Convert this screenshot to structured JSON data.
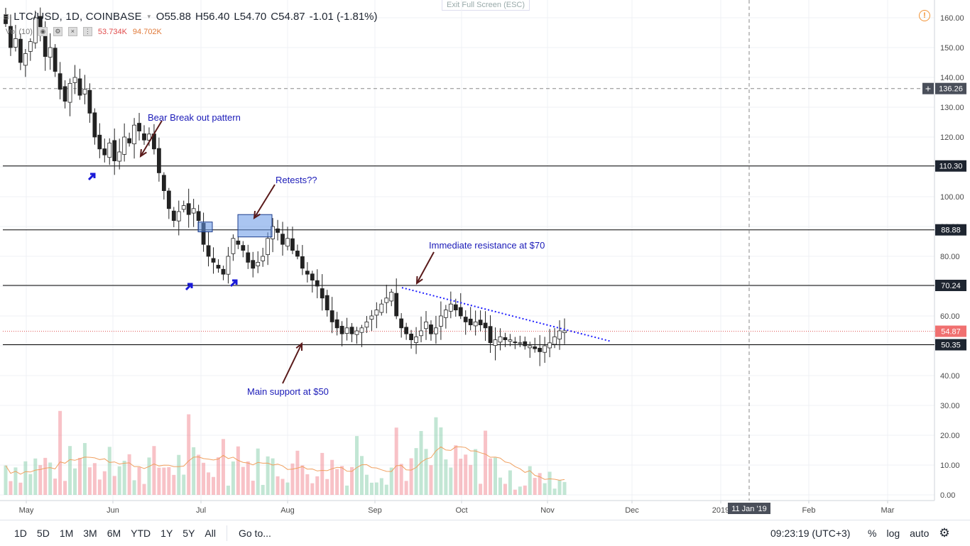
{
  "header": {
    "symbol": "LTC/USD, 1D, COINBASE",
    "open": "O55.88",
    "high": "H56.40",
    "low": "L54.70",
    "close": "C54.87",
    "change": "-1.01 (-1.81%)"
  },
  "volume_row": {
    "label": "Vol (10)",
    "value1": "53.734K",
    "value2": "94.702K"
  },
  "exit_fullscreen": "Exit Full Screen (ESC)",
  "bottom_bar": {
    "timeframes": [
      "1D",
      "5D",
      "1M",
      "3M",
      "6M",
      "YTD",
      "1Y",
      "5Y",
      "All"
    ],
    "goto": "Go to...",
    "clock": "09:23:19 (UTC+3)",
    "percent": "%",
    "log": "log",
    "auto": "auto"
  },
  "chart_data": {
    "type": "candlestick",
    "y_ticks": [
      0,
      10,
      20,
      30,
      40,
      50,
      60,
      70,
      80,
      90,
      100,
      110,
      120,
      130,
      140,
      150,
      160
    ],
    "y_tick_labels": [
      "0.00",
      "10.00",
      "20.00",
      "30.00",
      "40.00",
      "50.00",
      "60.00",
      "70.00",
      "80.00",
      "90.00",
      "100.00",
      "110.00",
      "120.00",
      "130.00",
      "140.00",
      "150.00",
      "160.00"
    ],
    "x_ticks": [
      "May",
      "Jun",
      "Jul",
      "Aug",
      "Sep",
      "Oct",
      "Nov",
      "Dec",
      "2019",
      "Feb",
      "Mar"
    ],
    "crosshair": {
      "x_label": "11 Jan '19",
      "y_label": "136.26",
      "y_value": 136.26
    },
    "horizontal_levels": [
      {
        "value": 110.3,
        "label": "110.30"
      },
      {
        "value": 88.88,
        "label": "88.88"
      },
      {
        "value": 70.24,
        "label": "70.24"
      },
      {
        "value": 50.35,
        "label": "50.35"
      }
    ],
    "last_price": {
      "value": 54.87,
      "label": "54.87"
    },
    "annotations": [
      {
        "text": "Bear Break out pattern"
      },
      {
        "text": "Retests??"
      },
      {
        "text": "Immediate resistance at $70"
      },
      {
        "text": "Main support at $50"
      }
    ],
    "close_series_approx": [
      158,
      150,
      153,
      145,
      148,
      152,
      160,
      154,
      147,
      150,
      142,
      136,
      132,
      138,
      140,
      134,
      136,
      128,
      120,
      116,
      114,
      118,
      112,
      115,
      120,
      118,
      124,
      122,
      119,
      121,
      116,
      108,
      102,
      96,
      92,
      95,
      97,
      94,
      96,
      92,
      84,
      80,
      78,
      76,
      74,
      80,
      86,
      84,
      82,
      78,
      76,
      78,
      80,
      86,
      90,
      88,
      84,
      86,
      82,
      80,
      76,
      74,
      72,
      70,
      66,
      62,
      58,
      56,
      54,
      56,
      54,
      55,
      56,
      58,
      60,
      62,
      64,
      66,
      68,
      60,
      56,
      54,
      52,
      53,
      55,
      58,
      54,
      56,
      60,
      62,
      64,
      62,
      60,
      58,
      57,
      58,
      57,
      56,
      51,
      52,
      53,
      52,
      52,
      51,
      51,
      50,
      50,
      49,
      48,
      50,
      51,
      53,
      55,
      55
    ]
  }
}
